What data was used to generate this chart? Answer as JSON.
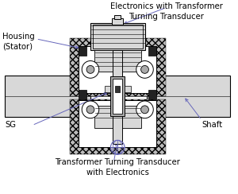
{
  "bg_color": "#ffffff",
  "line_color": "#000000",
  "blue_line": "#6666bb",
  "hatch_gray": "#bbbbbb",
  "light_gray": "#d8d8d8",
  "mid_gray": "#aaaaaa",
  "dark_fill": "#555555",
  "labels": {
    "electronics": "Electronics with Transformer\nTurning Transducer",
    "housing": "Housing\n(Stator)",
    "sg": "SG",
    "shaft": "Shaft",
    "bottom": "Transformer Turning Transducer\nwith Electronics"
  },
  "figsize": [
    3.0,
    2.44
  ],
  "dpi": 100
}
